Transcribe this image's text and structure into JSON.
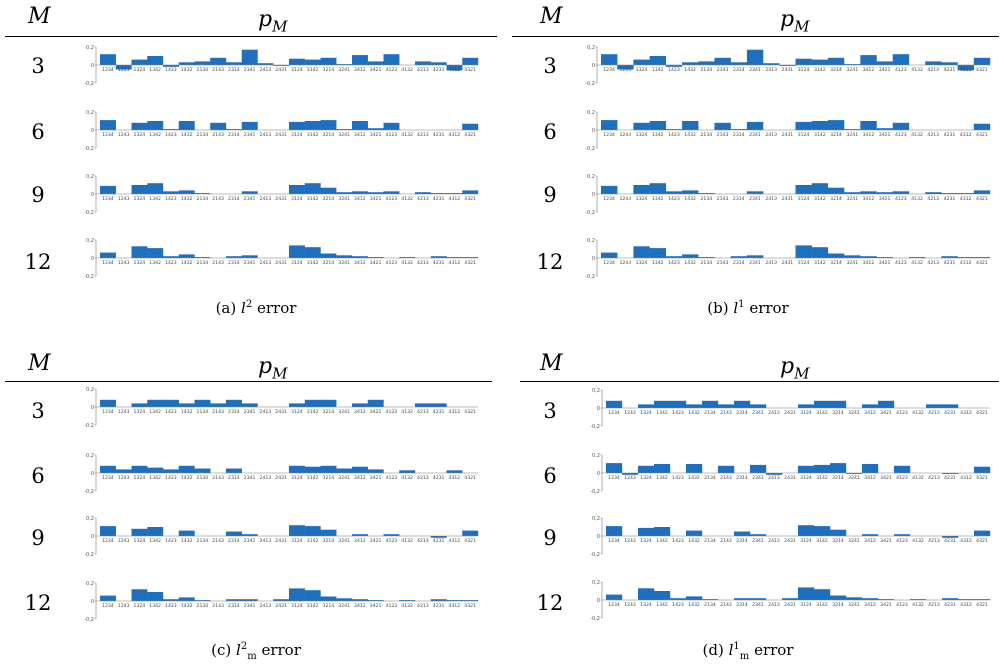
{
  "header": {
    "m_label": "M",
    "p_label_base": "p",
    "p_label_sub": "M"
  },
  "categories": [
    "1234",
    "1243",
    "1324",
    "1342",
    "1423",
    "1432",
    "2134",
    "2143",
    "2314",
    "2341",
    "2413",
    "2431",
    "3124",
    "3142",
    "3214",
    "3241",
    "3412",
    "3421",
    "4123",
    "4132",
    "4213",
    "4231",
    "4312",
    "4321"
  ],
  "y_ticks": [
    "0,2",
    "0",
    "-0,2"
  ],
  "colors": {
    "bar": "#1f6fbf",
    "axis": "#7a7a7a"
  },
  "panels": [
    {
      "caption_prefix": "(a)",
      "caption_var": "l",
      "caption_sup": "2",
      "caption_sub": "",
      "caption_word": "error"
    },
    {
      "caption_prefix": "(b)",
      "caption_var": "l",
      "caption_sup": "1",
      "caption_sub": "",
      "caption_word": "error"
    },
    {
      "caption_prefix": "(c)",
      "caption_var": "l",
      "caption_sup": "2",
      "caption_sub": "m",
      "caption_word": "error"
    },
    {
      "caption_prefix": "(d)",
      "caption_var": "l",
      "caption_sup": "1",
      "caption_sub": "m",
      "caption_word": "error"
    }
  ],
  "chart_data": [
    {
      "type": "bar",
      "title": "(a) l2 error",
      "ylim": [
        -0.2,
        0.2
      ],
      "categories": [
        "1234",
        "1243",
        "1324",
        "1342",
        "1423",
        "1432",
        "2134",
        "2143",
        "2314",
        "2341",
        "2413",
        "2431",
        "3124",
        "3142",
        "3214",
        "3241",
        "3412",
        "3421",
        "4123",
        "4132",
        "4213",
        "4231",
        "4312",
        "4321"
      ],
      "series": [
        {
          "name": "3",
          "values": [
            0.12,
            -0.05,
            0.06,
            0.1,
            -0.02,
            0.03,
            0.04,
            0.08,
            0.03,
            0.17,
            0.02,
            -0.01,
            0.07,
            0.06,
            0.08,
            0.01,
            0.11,
            0.04,
            0.12,
            0.0,
            0.04,
            0.03,
            -0.06,
            0.08
          ]
        },
        {
          "name": "6",
          "values": [
            0.11,
            0.0,
            0.08,
            0.1,
            0.01,
            0.1,
            0.0,
            0.08,
            0.01,
            0.09,
            0.0,
            0.0,
            0.09,
            0.1,
            0.11,
            0.01,
            0.1,
            0.02,
            0.08,
            0.0,
            0.0,
            0.0,
            0.0,
            0.07
          ]
        },
        {
          "name": "9",
          "values": [
            0.09,
            0.0,
            0.1,
            0.12,
            0.03,
            0.04,
            0.01,
            0.0,
            0.0,
            0.03,
            0.0,
            0.0,
            0.1,
            0.12,
            0.07,
            0.02,
            0.03,
            0.02,
            0.03,
            0.0,
            0.02,
            0.01,
            0.01,
            0.04
          ]
        },
        {
          "name": "12",
          "values": [
            0.06,
            0.0,
            0.13,
            0.11,
            0.02,
            0.04,
            0.01,
            0.0,
            0.02,
            0.03,
            0.0,
            0.0,
            0.14,
            0.12,
            0.05,
            0.03,
            0.02,
            0.01,
            0.0,
            0.01,
            0.0,
            0.02,
            0.01,
            0.01
          ]
        }
      ]
    },
    {
      "type": "bar",
      "title": "(b) l1 error",
      "ylim": [
        -0.2,
        0.2
      ],
      "categories": [
        "1234",
        "1243",
        "1324",
        "1342",
        "1423",
        "1432",
        "2134",
        "2143",
        "2314",
        "2341",
        "2413",
        "2431",
        "3124",
        "3142",
        "3214",
        "3241",
        "3412",
        "3421",
        "4123",
        "4132",
        "4213",
        "4231",
        "4312",
        "4321"
      ],
      "series": [
        {
          "name": "3",
          "values": [
            0.12,
            -0.05,
            0.06,
            0.1,
            -0.02,
            0.03,
            0.04,
            0.08,
            0.03,
            0.17,
            0.02,
            -0.01,
            0.07,
            0.06,
            0.08,
            0.01,
            0.11,
            0.04,
            0.12,
            0.0,
            0.04,
            0.03,
            -0.06,
            0.08
          ]
        },
        {
          "name": "6",
          "values": [
            0.11,
            0.0,
            0.08,
            0.1,
            0.01,
            0.1,
            0.0,
            0.08,
            0.01,
            0.09,
            0.0,
            0.0,
            0.09,
            0.1,
            0.11,
            0.01,
            0.1,
            0.02,
            0.08,
            0.0,
            0.0,
            0.0,
            0.0,
            0.07
          ]
        },
        {
          "name": "9",
          "values": [
            0.09,
            0.0,
            0.1,
            0.12,
            0.03,
            0.04,
            0.01,
            0.0,
            0.0,
            0.03,
            0.0,
            0.0,
            0.1,
            0.12,
            0.07,
            0.02,
            0.03,
            0.02,
            0.03,
            0.0,
            0.02,
            0.01,
            0.01,
            0.04
          ]
        },
        {
          "name": "12",
          "values": [
            0.06,
            0.0,
            0.13,
            0.11,
            0.02,
            0.04,
            0.01,
            0.0,
            0.02,
            0.03,
            0.0,
            0.0,
            0.14,
            0.12,
            0.05,
            0.03,
            0.02,
            0.01,
            0.0,
            0.01,
            0.0,
            0.02,
            0.01,
            0.01
          ]
        }
      ]
    },
    {
      "type": "bar",
      "title": "(c) l2m error",
      "ylim": [
        -0.2,
        0.2
      ],
      "categories": [
        "1234",
        "1243",
        "1324",
        "1342",
        "1423",
        "1432",
        "2134",
        "2143",
        "2314",
        "2341",
        "2413",
        "2431",
        "3124",
        "3142",
        "3214",
        "3241",
        "3412",
        "3421",
        "4123",
        "4132",
        "4213",
        "4231",
        "4312",
        "4321"
      ],
      "series": [
        {
          "name": "3",
          "values": [
            0.08,
            0.0,
            0.04,
            0.08,
            0.08,
            0.04,
            0.08,
            0.04,
            0.08,
            0.04,
            0.0,
            0.0,
            0.04,
            0.08,
            0.08,
            0.0,
            0.04,
            0.08,
            0.0,
            0.0,
            0.04,
            0.04,
            0.0,
            0.0
          ]
        },
        {
          "name": "6",
          "values": [
            0.08,
            0.04,
            0.08,
            0.06,
            0.04,
            0.08,
            0.05,
            0.0,
            0.05,
            0.0,
            0.0,
            0.0,
            0.08,
            0.07,
            0.08,
            0.05,
            0.07,
            0.04,
            0.0,
            0.03,
            0.0,
            0.0,
            0.03,
            0.0
          ]
        },
        {
          "name": "9",
          "values": [
            0.11,
            0.0,
            0.08,
            0.1,
            0.0,
            0.06,
            0.0,
            0.0,
            0.05,
            0.02,
            0.0,
            0.0,
            0.12,
            0.11,
            0.07,
            0.0,
            0.02,
            0.0,
            0.02,
            0.0,
            0.0,
            -0.02,
            0.0,
            0.06
          ]
        },
        {
          "name": "12",
          "values": [
            0.06,
            0.0,
            0.13,
            0.1,
            0.02,
            0.04,
            0.01,
            0.0,
            0.02,
            0.02,
            0.0,
            0.02,
            0.14,
            0.12,
            0.05,
            0.03,
            0.02,
            0.01,
            0.0,
            0.01,
            0.0,
            0.02,
            0.01,
            0.01
          ]
        }
      ]
    },
    {
      "type": "bar",
      "title": "(d) l1m error",
      "ylim": [
        -0.2,
        0.2
      ],
      "categories": [
        "1234",
        "1243",
        "1324",
        "1342",
        "1423",
        "1432",
        "2134",
        "2143",
        "2314",
        "2341",
        "2413",
        "2431",
        "3124",
        "3142",
        "3214",
        "3241",
        "3412",
        "3421",
        "4123",
        "4132",
        "4213",
        "4231",
        "4312",
        "4321"
      ],
      "series": [
        {
          "name": "3",
          "values": [
            0.08,
            0.0,
            0.04,
            0.08,
            0.08,
            0.04,
            0.08,
            0.04,
            0.08,
            0.04,
            0.0,
            0.0,
            0.04,
            0.08,
            0.08,
            0.0,
            0.04,
            0.08,
            0.0,
            0.0,
            0.04,
            0.04,
            0.0,
            0.0
          ]
        },
        {
          "name": "6",
          "values": [
            0.11,
            -0.02,
            0.08,
            0.1,
            0.0,
            0.1,
            0.0,
            0.08,
            0.0,
            0.09,
            -0.02,
            0.0,
            0.08,
            0.09,
            0.11,
            -0.01,
            0.1,
            0.0,
            0.08,
            0.0,
            0.0,
            -0.01,
            0.0,
            0.07
          ]
        },
        {
          "name": "9",
          "values": [
            0.11,
            0.0,
            0.09,
            0.1,
            0.0,
            0.06,
            0.0,
            0.0,
            0.05,
            0.02,
            0.0,
            0.0,
            0.12,
            0.11,
            0.07,
            0.0,
            0.02,
            0.0,
            0.02,
            0.0,
            0.0,
            -0.02,
            0.0,
            0.06
          ]
        },
        {
          "name": "12",
          "values": [
            0.06,
            0.0,
            0.13,
            0.1,
            0.02,
            0.04,
            0.01,
            0.0,
            0.02,
            0.02,
            0.0,
            0.02,
            0.14,
            0.12,
            0.05,
            0.03,
            0.02,
            0.01,
            0.0,
            0.01,
            0.0,
            0.02,
            0.01,
            0.01
          ]
        }
      ]
    }
  ]
}
